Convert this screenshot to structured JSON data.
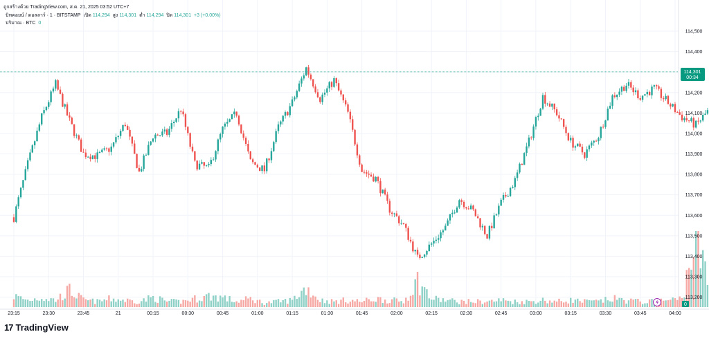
{
  "header": {
    "created_with": "ถูกสร้างด้วย TradingView.com, ส.ค. 21, 2025 03:52 UTC+7",
    "symbol": "บิทคอยน์ / ดอลลาร์ · 1 · BITSTAMP",
    "open_label": "เปิด",
    "open": "114,294",
    "high_label": "สูง",
    "high": "114,301",
    "low_label": "ต่ำ",
    "low": "114,294",
    "close_label": "ปิด",
    "close": "114,301",
    "change": "+3 (+0.00%)",
    "volume_label": "ปริมาณ · BTC",
    "volume_value": "0"
  },
  "price_tag": {
    "price": "114,301",
    "countdown": "00:34"
  },
  "volume_tag": "0",
  "brand": {
    "name": "TradingView"
  },
  "colors": {
    "up": "#26a69a",
    "down": "#ef5350",
    "vol_up": "#8fd1c7",
    "vol_down": "#f6a8a4",
    "last_price": "#089981"
  },
  "chart_data": {
    "type": "candlestick",
    "y_ticks": [
      "114,500",
      "114,400",
      "114,300",
      "114,200",
      "114,100",
      "114,000",
      "113,900",
      "113,800",
      "113,700",
      "113,600",
      "113,500",
      "113,400",
      "113,300",
      "113,200"
    ],
    "ylim": [
      113150,
      114560
    ],
    "x_ticks": [
      "23:15",
      "23:30",
      "23:45",
      "21",
      "00:15",
      "00:30",
      "00:45",
      "01:00",
      "01:15",
      "01:30",
      "01:45",
      "02:00",
      "02:15",
      "02:30",
      "02:45",
      "03:00",
      "03:15",
      "03:30",
      "03:45",
      "04:00"
    ],
    "x_start_tick": "23:15",
    "x_end_tick": "04:00",
    "close_path_minutes": [
      0,
      6,
      12,
      18,
      24,
      30,
      36,
      42,
      48,
      54,
      60,
      66,
      72,
      78,
      84,
      90,
      96,
      102,
      108,
      114,
      120,
      126,
      132,
      138,
      144,
      150,
      156,
      162,
      168,
      174,
      180,
      186,
      192,
      198,
      204,
      210,
      216,
      222,
      228,
      234,
      240,
      246,
      252,
      258,
      264,
      270,
      276,
      282,
      288,
      294,
      300,
      306,
      312,
      318,
      324,
      330,
      336,
      342,
      348,
      353
    ],
    "close_path": [
      113590,
      113850,
      114080,
      114240,
      114060,
      113900,
      113890,
      113930,
      114050,
      113810,
      113990,
      114000,
      114120,
      113850,
      113830,
      114020,
      114100,
      113860,
      113820,
      114030,
      114150,
      114320,
      114170,
      114260,
      114100,
      113820,
      113780,
      113630,
      113550,
      113390,
      113460,
      113540,
      113680,
      113620,
      113500,
      113660,
      113770,
      113960,
      114180,
      114100,
      113960,
      113900,
      113990,
      114180,
      114240,
      114180,
      114220,
      114150,
      114080,
      114040,
      114120,
      114180,
      114210,
      114160,
      114200,
      114240,
      114250,
      114270,
      114290,
      114301
    ],
    "volume_path": [
      40,
      25,
      35,
      25,
      60,
      25,
      20,
      30,
      25,
      20,
      35,
      20,
      20,
      30,
      40,
      35,
      20,
      30,
      15,
      20,
      25,
      70,
      25,
      20,
      25,
      20,
      30,
      25,
      20,
      95,
      30,
      25,
      20,
      20,
      20,
      25,
      20,
      20,
      25,
      20,
      25,
      20,
      20,
      30,
      25,
      20,
      20,
      25,
      30,
      270,
      50,
      25,
      20,
      20,
      20,
      25,
      20,
      15,
      10,
      5
    ]
  }
}
